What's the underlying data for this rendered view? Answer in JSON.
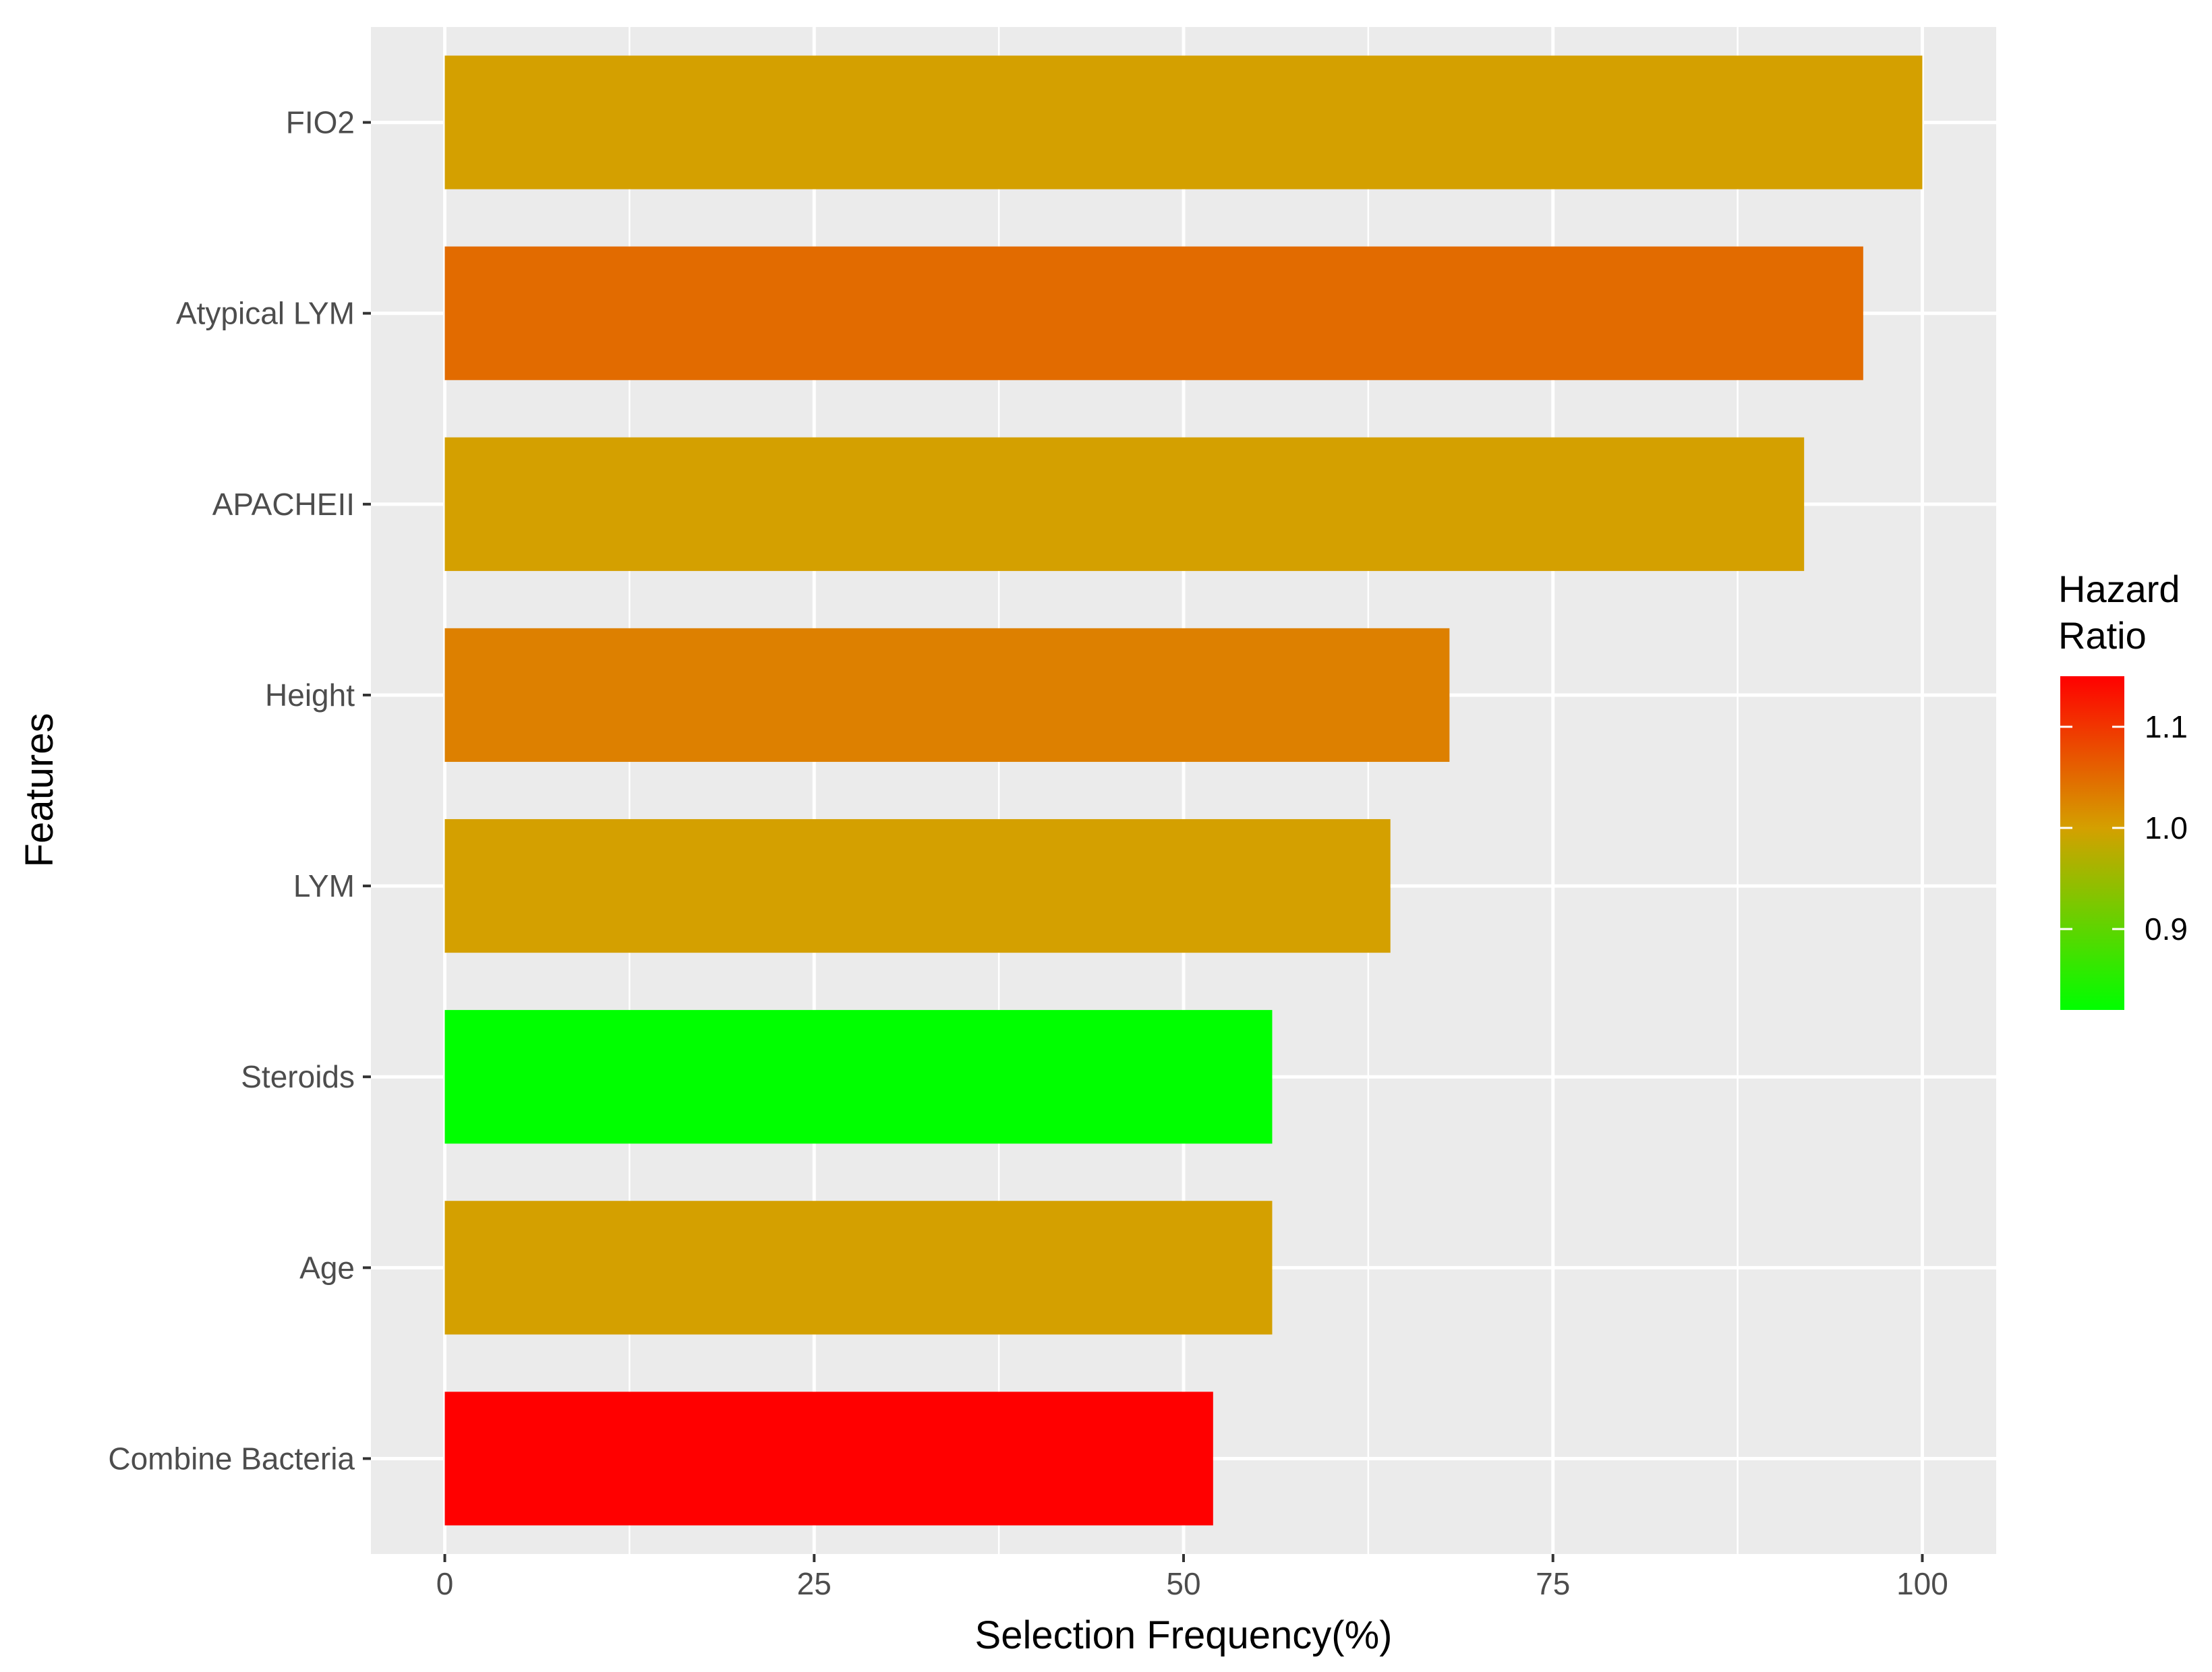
{
  "chart_data": {
    "type": "bar",
    "orientation": "horizontal",
    "title": "",
    "xlabel": "Selection Frequency(%)",
    "ylabel": "Features",
    "xlim": [
      -5,
      105
    ],
    "xticks": [
      0,
      25,
      50,
      75,
      100
    ],
    "grid": true,
    "categories": [
      "FIO2",
      "Atypical LYM",
      "APACHEII",
      "Height",
      "LYM",
      "Steroids",
      "Age",
      "Combine Bacteria"
    ],
    "values": [
      100,
      96,
      92,
      68,
      64,
      56,
      56,
      52
    ],
    "hazard_ratio": [
      1.0,
      1.05,
      1.0,
      1.03,
      1.0,
      0.82,
      1.0,
      1.15
    ],
    "legend": {
      "title_line1": "Hazard",
      "title_line2": "Ratio",
      "placement": "right",
      "range": [
        0.82,
        1.15
      ],
      "ticks": [
        0.9,
        1.0,
        1.1
      ],
      "tick_labels": [
        "0.9",
        "1.0",
        "1.1"
      ],
      "colors": {
        "low": "#00ff00",
        "mid": "#d4a000",
        "high": "#ff0000"
      }
    },
    "colors": {
      "panel": "#ebebeb",
      "grid": "#ffffff"
    }
  }
}
